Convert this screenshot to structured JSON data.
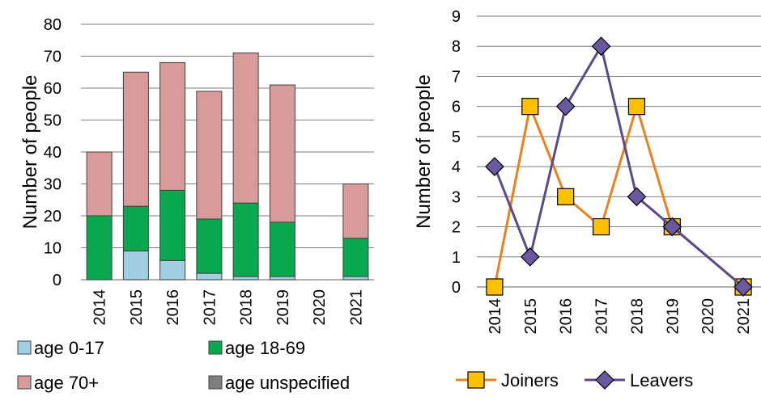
{
  "chart_data": [
    {
      "type": "bar",
      "stacked": true,
      "ylabel": "Number of people",
      "ylim": [
        0,
        80
      ],
      "yticks": [
        "0",
        "10",
        "20",
        "30",
        "40",
        "50",
        "60",
        "70",
        "80"
      ],
      "grid": true,
      "legend_position": "bottom",
      "categories": [
        "2014",
        "2015",
        "2016",
        "2017",
        "2018",
        "2019",
        "2020",
        "2021"
      ],
      "series": [
        {
          "name": "age 0-17",
          "color": "#9fcfe0",
          "values": [
            0,
            9,
            6,
            2,
            1,
            1,
            0,
            1
          ]
        },
        {
          "name": "age 18-69",
          "color": "#08a84e",
          "values": [
            20,
            14,
            22,
            17,
            23,
            17,
            0,
            12
          ]
        },
        {
          "name": "age 70+",
          "color": "#d99a9a",
          "values": [
            20,
            42,
            40,
            40,
            47,
            43,
            0,
            17
          ]
        },
        {
          "name": "age unspecified",
          "color": "#7f7f7f",
          "values": [
            0,
            0,
            0,
            0,
            0,
            0,
            0,
            0
          ]
        }
      ]
    },
    {
      "type": "line",
      "ylabel": "Number of people",
      "ylim": [
        0,
        9
      ],
      "yticks": [
        "0",
        "1",
        "2",
        "3",
        "4",
        "5",
        "6",
        "7",
        "8",
        "9"
      ],
      "grid": true,
      "legend_position": "bottom",
      "categories": [
        "2014",
        "2015",
        "2016",
        "2017",
        "2018",
        "2019",
        "2020",
        "2021"
      ],
      "series": [
        {
          "name": "Joiners",
          "color": "#e8821f",
          "marker_color": "#ffc000",
          "marker": "square",
          "values": [
            0,
            6,
            3,
            2,
            6,
            2,
            null,
            0
          ]
        },
        {
          "name": "Leavers",
          "color": "#5b4a8a",
          "marker_color": "#6a58a0",
          "marker": "diamond",
          "values": [
            4,
            1,
            6,
            8,
            3,
            2,
            null,
            0
          ]
        }
      ]
    }
  ]
}
